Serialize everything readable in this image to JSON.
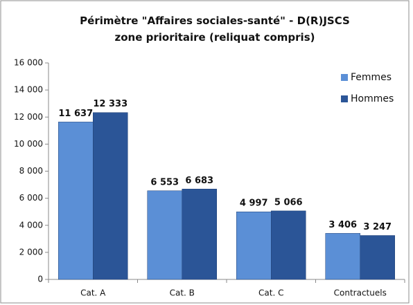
{
  "chart_data": {
    "type": "bar",
    "title": "Périmètre \"Affaires sociales-santé\" - D(R)JSCS  zone prioritaire (reliquat compris)",
    "categories": [
      "Cat. A",
      "Cat. B",
      "Cat. C",
      "Contractuels"
    ],
    "series": [
      {
        "name": "Femmes",
        "color": "#5b8fd6",
        "values": [
          11637,
          6553,
          4997,
          3406
        ],
        "value_labels": [
          "11 637",
          "6 553",
          "4 997",
          "3 406"
        ]
      },
      {
        "name": "Hommes",
        "color": "#2b5597",
        "values": [
          12333,
          6683,
          5066,
          3247
        ],
        "value_labels": [
          "12 333",
          "6 683",
          "5 066",
          "3 247"
        ]
      }
    ],
    "ylim": [
      0,
      16000
    ],
    "yticks": [
      0,
      {
        "value": 2000,
        "label": "2 000"
      },
      {
        "value": 4000,
        "label": "4 000"
      },
      {
        "value": 6000,
        "label": "6 000"
      },
      {
        "value": 8000,
        "label": "8 000"
      },
      {
        "value": 10000,
        "label": "10 000"
      },
      {
        "value": 12000,
        "label": "12 000"
      },
      {
        "value": 14000,
        "label": "14 000"
      },
      {
        "value": 16000,
        "label": "16 000"
      }
    ],
    "legend": "right",
    "grid": false
  }
}
